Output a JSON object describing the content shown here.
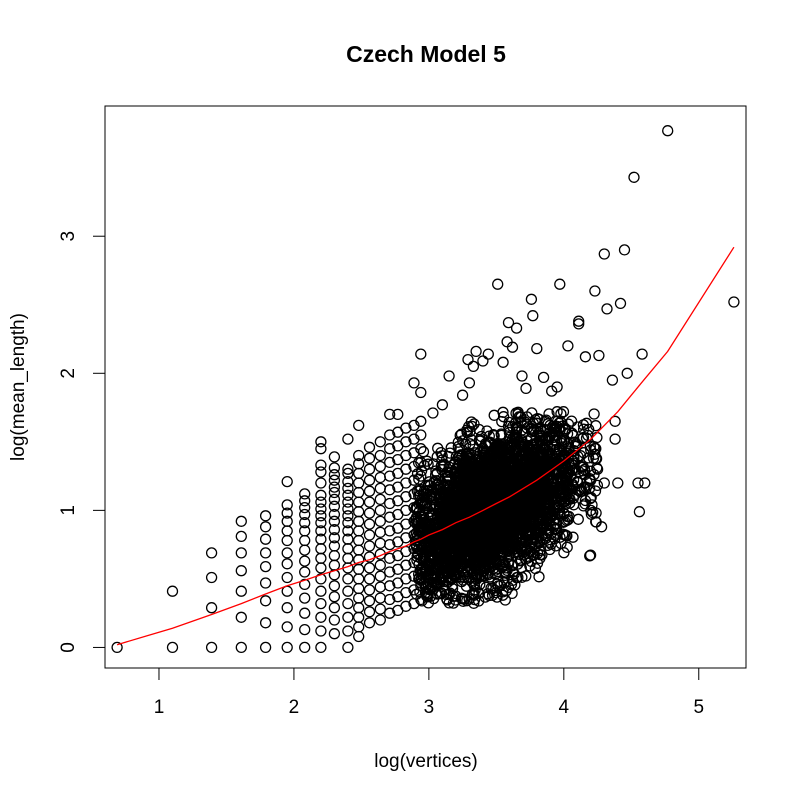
{
  "chart_data": {
    "type": "scatter",
    "title": "Czech Model 5",
    "xlabel": "log(vertices)",
    "ylabel": "log(mean_length)",
    "xlim": [
      0.6,
      5.35
    ],
    "ylim": [
      -0.15,
      3.95
    ],
    "xticks": [
      1,
      2,
      3,
      4,
      5
    ],
    "yticks": [
      0,
      1,
      2,
      3
    ],
    "grid": false,
    "legend": "none",
    "point_color": "#000000",
    "fit_color": "#ff0000",
    "series": [
      {
        "kind": "points",
        "note_points": [
          [
            0.69,
            0.0
          ],
          [
            1.1,
            0.0
          ],
          [
            1.1,
            0.41
          ],
          [
            1.39,
            0.0
          ],
          [
            1.39,
            0.29
          ],
          [
            1.39,
            0.51
          ],
          [
            1.39,
            0.69
          ],
          [
            1.61,
            0.0
          ],
          [
            1.61,
            0.22
          ],
          [
            1.61,
            0.41
          ],
          [
            1.61,
            0.56
          ],
          [
            1.61,
            0.69
          ],
          [
            1.61,
            0.81
          ],
          [
            1.61,
            0.92
          ],
          [
            1.79,
            0.0
          ],
          [
            1.79,
            0.18
          ],
          [
            1.79,
            0.34
          ],
          [
            1.79,
            0.47
          ],
          [
            1.79,
            0.59
          ],
          [
            1.79,
            0.69
          ],
          [
            1.79,
            0.79
          ],
          [
            1.79,
            0.88
          ],
          [
            1.79,
            0.96
          ],
          [
            1.95,
            0.0
          ],
          [
            1.95,
            0.15
          ],
          [
            1.95,
            0.29
          ],
          [
            1.95,
            0.41
          ],
          [
            1.95,
            0.51
          ],
          [
            1.95,
            0.61
          ],
          [
            1.95,
            0.69
          ],
          [
            1.95,
            0.78
          ],
          [
            1.95,
            0.85
          ],
          [
            1.95,
            0.92
          ],
          [
            1.95,
            0.98
          ],
          [
            1.95,
            1.04
          ],
          [
            1.95,
            1.21
          ],
          [
            2.08,
            0.0
          ],
          [
            2.08,
            0.13
          ],
          [
            2.08,
            0.25
          ],
          [
            2.08,
            0.36
          ],
          [
            2.08,
            0.46
          ],
          [
            2.08,
            0.55
          ],
          [
            2.08,
            0.63
          ],
          [
            2.08,
            0.71
          ],
          [
            2.08,
            0.78
          ],
          [
            2.08,
            0.85
          ],
          [
            2.08,
            0.91
          ],
          [
            2.08,
            0.97
          ],
          [
            2.08,
            1.02
          ],
          [
            2.08,
            1.07
          ],
          [
            2.08,
            1.12
          ],
          [
            2.2,
            0.0
          ],
          [
            2.2,
            0.12
          ],
          [
            2.2,
            0.22
          ],
          [
            2.2,
            0.32
          ],
          [
            2.2,
            0.41
          ],
          [
            2.2,
            0.5
          ],
          [
            2.2,
            0.58
          ],
          [
            2.2,
            0.65
          ],
          [
            2.2,
            0.72
          ],
          [
            2.2,
            0.79
          ],
          [
            2.2,
            0.85
          ],
          [
            2.2,
            0.91
          ],
          [
            2.2,
            0.96
          ],
          [
            2.2,
            1.01
          ],
          [
            2.2,
            1.06
          ],
          [
            2.2,
            1.11
          ],
          [
            2.2,
            1.2
          ],
          [
            2.2,
            1.28
          ],
          [
            2.2,
            1.33
          ],
          [
            2.2,
            1.45
          ],
          [
            2.2,
            1.5
          ],
          [
            2.3,
            0.1
          ],
          [
            2.3,
            0.2
          ],
          [
            2.3,
            0.29
          ],
          [
            2.3,
            0.37
          ],
          [
            2.3,
            0.45
          ],
          [
            2.3,
            0.53
          ],
          [
            2.3,
            0.6
          ],
          [
            2.3,
            0.67
          ],
          [
            2.3,
            0.74
          ],
          [
            2.3,
            0.8
          ],
          [
            2.3,
            0.86
          ],
          [
            2.3,
            0.92
          ],
          [
            2.3,
            0.97
          ],
          [
            2.3,
            1.03
          ],
          [
            2.3,
            1.08
          ],
          [
            2.3,
            1.13
          ],
          [
            2.3,
            1.17
          ],
          [
            2.3,
            1.22
          ],
          [
            2.3,
            1.26
          ],
          [
            2.3,
            1.31
          ],
          [
            2.3,
            1.39
          ],
          [
            2.4,
            0.0
          ],
          [
            2.4,
            0.12
          ],
          [
            2.4,
            0.22
          ],
          [
            2.4,
            0.32
          ],
          [
            2.4,
            0.41
          ],
          [
            2.4,
            0.5
          ],
          [
            2.4,
            0.58
          ],
          [
            2.4,
            0.65
          ],
          [
            2.4,
            0.72
          ],
          [
            2.4,
            0.79
          ],
          [
            2.4,
            0.85
          ],
          [
            2.4,
            0.91
          ],
          [
            2.4,
            0.96
          ],
          [
            2.4,
            1.01
          ],
          [
            2.4,
            1.06
          ],
          [
            2.4,
            1.11
          ],
          [
            2.4,
            1.16
          ],
          [
            2.4,
            1.21
          ],
          [
            2.4,
            1.27
          ],
          [
            2.4,
            1.3
          ],
          [
            2.4,
            1.52
          ],
          [
            2.48,
            0.08
          ],
          [
            2.48,
            0.15
          ],
          [
            2.48,
            0.22
          ],
          [
            2.48,
            0.29
          ],
          [
            2.48,
            0.36
          ],
          [
            2.48,
            0.43
          ],
          [
            2.48,
            0.5
          ],
          [
            2.48,
            0.57
          ],
          [
            2.48,
            0.64
          ],
          [
            2.48,
            0.71
          ],
          [
            2.48,
            0.78
          ],
          [
            2.48,
            0.85
          ],
          [
            2.48,
            0.92
          ],
          [
            2.48,
            0.99
          ],
          [
            2.48,
            1.06
          ],
          [
            2.48,
            1.13
          ],
          [
            2.48,
            1.2
          ],
          [
            2.48,
            1.27
          ],
          [
            2.48,
            1.34
          ],
          [
            2.48,
            1.4
          ],
          [
            2.48,
            1.62
          ],
          [
            2.56,
            0.18
          ],
          [
            2.56,
            0.26
          ],
          [
            2.56,
            0.34
          ],
          [
            2.56,
            0.42
          ],
          [
            2.56,
            0.5
          ],
          [
            2.56,
            0.58
          ],
          [
            2.56,
            0.66
          ],
          [
            2.56,
            0.74
          ],
          [
            2.56,
            0.82
          ],
          [
            2.56,
            0.9
          ],
          [
            2.56,
            0.98
          ],
          [
            2.56,
            1.06
          ],
          [
            2.56,
            1.14
          ],
          [
            2.56,
            1.22
          ],
          [
            2.56,
            1.3
          ],
          [
            2.56,
            1.38
          ],
          [
            2.56,
            1.46
          ],
          [
            2.64,
            0.2
          ],
          [
            2.64,
            0.28
          ],
          [
            2.64,
            0.36
          ],
          [
            2.64,
            0.44
          ],
          [
            2.64,
            0.52
          ],
          [
            2.64,
            0.6
          ],
          [
            2.64,
            0.68
          ],
          [
            2.64,
            0.76
          ],
          [
            2.64,
            0.84
          ],
          [
            2.64,
            0.92
          ],
          [
            2.64,
            1.0
          ],
          [
            2.64,
            1.08
          ],
          [
            2.64,
            1.16
          ],
          [
            2.64,
            1.24
          ],
          [
            2.64,
            1.32
          ],
          [
            2.64,
            1.4
          ],
          [
            2.64,
            1.5
          ],
          [
            2.71,
            0.25
          ],
          [
            2.71,
            0.35
          ],
          [
            2.71,
            0.45
          ],
          [
            2.71,
            0.55
          ],
          [
            2.71,
            0.65
          ],
          [
            2.71,
            0.75
          ],
          [
            2.71,
            0.85
          ],
          [
            2.71,
            0.95
          ],
          [
            2.71,
            1.05
          ],
          [
            2.71,
            1.15
          ],
          [
            2.71,
            1.25
          ],
          [
            2.71,
            1.35
          ],
          [
            2.71,
            1.45
          ],
          [
            2.71,
            1.55
          ],
          [
            2.71,
            1.7
          ],
          [
            2.77,
            0.27
          ],
          [
            2.77,
            0.37
          ],
          [
            2.77,
            0.47
          ],
          [
            2.77,
            0.57
          ],
          [
            2.77,
            0.67
          ],
          [
            2.77,
            0.77
          ],
          [
            2.77,
            0.87
          ],
          [
            2.77,
            0.97
          ],
          [
            2.77,
            1.07
          ],
          [
            2.77,
            1.17
          ],
          [
            2.77,
            1.27
          ],
          [
            2.77,
            1.37
          ],
          [
            2.77,
            1.47
          ],
          [
            2.77,
            1.57
          ],
          [
            2.77,
            1.7
          ],
          [
            2.83,
            0.3
          ],
          [
            2.83,
            0.4
          ],
          [
            2.83,
            0.5
          ],
          [
            2.83,
            0.6
          ],
          [
            2.83,
            0.7
          ],
          [
            2.83,
            0.8
          ],
          [
            2.83,
            0.9
          ],
          [
            2.83,
            1.0
          ],
          [
            2.83,
            1.1
          ],
          [
            2.83,
            1.2
          ],
          [
            2.83,
            1.3
          ],
          [
            2.83,
            1.4
          ],
          [
            2.83,
            1.5
          ],
          [
            2.83,
            1.6
          ],
          [
            2.89,
            0.32
          ],
          [
            2.89,
            0.42
          ],
          [
            2.89,
            0.52
          ],
          [
            2.89,
            0.62
          ],
          [
            2.89,
            0.72
          ],
          [
            2.89,
            0.82
          ],
          [
            2.89,
            0.92
          ],
          [
            2.89,
            1.02
          ],
          [
            2.89,
            1.12
          ],
          [
            2.89,
            1.22
          ],
          [
            2.89,
            1.32
          ],
          [
            2.89,
            1.42
          ],
          [
            2.89,
            1.52
          ],
          [
            2.89,
            1.62
          ],
          [
            2.89,
            1.93
          ],
          [
            2.94,
            0.35
          ],
          [
            2.94,
            0.45
          ],
          [
            2.94,
            0.55
          ],
          [
            2.94,
            0.65
          ],
          [
            2.94,
            0.75
          ],
          [
            2.94,
            0.85
          ],
          [
            2.94,
            0.95
          ],
          [
            2.94,
            1.05
          ],
          [
            2.94,
            1.15
          ],
          [
            2.94,
            1.25
          ],
          [
            2.94,
            1.35
          ],
          [
            2.94,
            1.45
          ],
          [
            2.94,
            1.55
          ],
          [
            2.94,
            1.65
          ],
          [
            2.94,
            1.86
          ],
          [
            2.94,
            2.14
          ]
        ],
        "dense_cloud": {
          "x_range": [
            2.9,
            4.25
          ],
          "y_range": [
            0.32,
            1.72
          ],
          "center": [
            3.45,
            1.0
          ],
          "approx_count": 3500
        },
        "outliers": [
          [
            3.03,
            1.71
          ],
          [
            3.1,
            1.77
          ],
          [
            3.15,
            1.98
          ],
          [
            3.25,
            1.84
          ],
          [
            3.29,
            2.1
          ],
          [
            3.3,
            1.93
          ],
          [
            3.33,
            2.05
          ],
          [
            3.35,
            2.16
          ],
          [
            3.4,
            2.09
          ],
          [
            3.44,
            2.14
          ],
          [
            3.51,
            2.65
          ],
          [
            3.55,
            2.08
          ],
          [
            3.58,
            2.23
          ],
          [
            3.59,
            2.37
          ],
          [
            3.62,
            2.19
          ],
          [
            3.65,
            2.33
          ],
          [
            3.69,
            1.98
          ],
          [
            3.72,
            1.89
          ],
          [
            3.76,
            2.54
          ],
          [
            3.77,
            2.42
          ],
          [
            3.8,
            2.18
          ],
          [
            3.85,
            1.97
          ],
          [
            3.91,
            1.87
          ],
          [
            3.95,
            1.9
          ],
          [
            3.97,
            2.65
          ],
          [
            4.03,
            2.2
          ],
          [
            4.11,
            2.36
          ],
          [
            4.11,
            2.38
          ],
          [
            4.16,
            2.12
          ],
          [
            4.23,
            2.6
          ],
          [
            4.26,
            2.13
          ],
          [
            4.3,
            2.87
          ],
          [
            4.32,
            2.47
          ],
          [
            4.36,
            1.95
          ],
          [
            4.42,
            2.51
          ],
          [
            4.45,
            2.9
          ],
          [
            4.47,
            2.0
          ],
          [
            4.52,
            3.43
          ],
          [
            4.55,
            1.2
          ],
          [
            4.56,
            0.99
          ],
          [
            4.58,
            2.14
          ],
          [
            4.6,
            1.2
          ],
          [
            4.38,
            1.65
          ],
          [
            4.38,
            1.52
          ],
          [
            4.3,
            1.2
          ],
          [
            4.28,
            0.88
          ],
          [
            4.22,
            1.38
          ],
          [
            4.2,
            1.0
          ],
          [
            4.25,
            1.3
          ],
          [
            4.4,
            1.2
          ],
          [
            4.77,
            3.77
          ],
          [
            5.26,
            2.52
          ]
        ]
      },
      {
        "kind": "fit_line",
        "x": [
          0.69,
          1.1,
          1.39,
          1.61,
          1.79,
          1.95,
          2.08,
          2.2,
          2.3,
          2.4,
          2.48,
          2.56,
          2.64,
          2.71,
          2.77,
          2.83,
          2.89,
          2.94,
          3.0,
          3.1,
          3.2,
          3.3,
          3.4,
          3.5,
          3.6,
          3.7,
          3.8,
          3.9,
          4.0,
          4.1,
          4.2,
          4.3,
          4.4,
          4.5,
          4.6,
          4.77,
          5.26
        ],
        "y": [
          0.02,
          0.14,
          0.24,
          0.32,
          0.39,
          0.45,
          0.49,
          0.53,
          0.56,
          0.59,
          0.62,
          0.64,
          0.67,
          0.7,
          0.72,
          0.74,
          0.77,
          0.79,
          0.82,
          0.86,
          0.91,
          0.95,
          1.0,
          1.05,
          1.1,
          1.16,
          1.22,
          1.29,
          1.36,
          1.44,
          1.52,
          1.62,
          1.72,
          1.84,
          1.96,
          2.16,
          2.92
        ]
      }
    ]
  }
}
